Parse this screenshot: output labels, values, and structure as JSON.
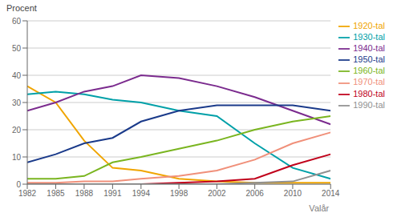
{
  "chart_data": {
    "type": "line",
    "x": [
      1982,
      1985,
      1988,
      1991,
      1994,
      1998,
      2002,
      2006,
      2010,
      2014
    ],
    "series": [
      {
        "name": "1920-tal",
        "color": "#f0a500",
        "values": [
          36,
          30,
          16,
          6,
          5,
          2,
          1,
          0.5,
          0.5,
          0.5
        ]
      },
      {
        "name": "1930-tal",
        "color": "#00a0a8",
        "values": [
          33,
          34,
          33,
          31,
          30,
          27,
          25,
          15,
          6,
          2
        ]
      },
      {
        "name": "1940-tal",
        "color": "#7b2b8e",
        "values": [
          27,
          30,
          34,
          36,
          40,
          39,
          36,
          32,
          27,
          22
        ]
      },
      {
        "name": "1950-tal",
        "color": "#1a3a8a",
        "values": [
          8,
          11,
          15,
          17,
          23,
          27,
          29,
          29,
          29,
          27
        ]
      },
      {
        "name": "1960-tal",
        "color": "#7ab520",
        "values": [
          2,
          2,
          3,
          8,
          10,
          13,
          16,
          20,
          23,
          25
        ]
      },
      {
        "name": "1970-tal",
        "color": "#f0907a",
        "values": [
          0.5,
          0.5,
          1,
          1,
          2,
          3,
          5,
          9,
          15,
          19
        ]
      },
      {
        "name": "1980-tal",
        "color": "#c0001a",
        "values": [
          0,
          0,
          0,
          0,
          0,
          0.5,
          1,
          2,
          7,
          11
        ]
      },
      {
        "name": "1990-tal",
        "color": "#909090",
        "values": [
          0,
          0,
          0,
          0,
          0,
          0,
          0,
          0.5,
          1,
          5
        ]
      }
    ],
    "ylabel": "Procent",
    "xlabel": "Valår",
    "xlim": [
      1982,
      2014
    ],
    "xticks": [
      1982,
      1985,
      1988,
      1991,
      1994,
      1998,
      2002,
      2006,
      2010,
      2014
    ],
    "ylim": [
      0,
      60
    ],
    "yticks": [
      0,
      10,
      20,
      30,
      40,
      50,
      60
    ],
    "grid": true,
    "legend": "right"
  }
}
